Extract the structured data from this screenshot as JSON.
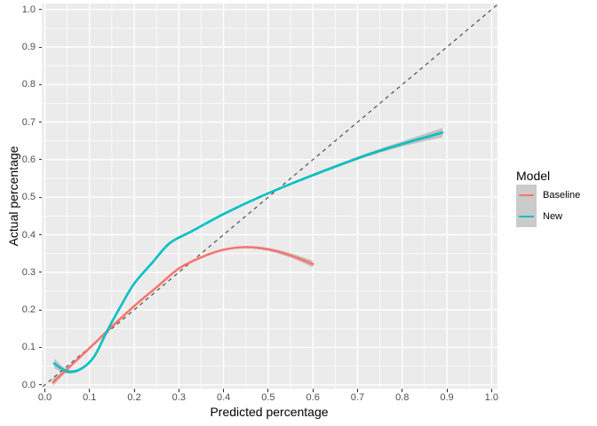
{
  "figure": {
    "bg": "#FFFFFF",
    "panel_bg": "#EBEBEB",
    "grid_color": "#FFFFFF",
    "tick_mark_color": "#333333",
    "tick_label_color": "#4D4D4D",
    "ribbon_color": "rgba(105,105,105,0.32)"
  },
  "axes": {
    "x": {
      "title": "Predicted percentage",
      "tick_labels": [
        "0.0",
        "0.1",
        "0.2",
        "0.3",
        "0.4",
        "0.5",
        "0.6",
        "0.7",
        "0.8",
        "0.9",
        "1.0"
      ],
      "tick_values": [
        0,
        0.1,
        0.2,
        0.3,
        0.4,
        0.5,
        0.6,
        0.7,
        0.8,
        0.9,
        1.0
      ],
      "minor_values": [
        0.05,
        0.15,
        0.25,
        0.35,
        0.45,
        0.55,
        0.65,
        0.75,
        0.85,
        0.95
      ]
    },
    "y": {
      "title": "Actual percentage",
      "tick_labels": [
        "0.0",
        "0.1",
        "0.2",
        "0.3",
        "0.4",
        "0.5",
        "0.6",
        "0.7",
        "0.8",
        "0.9",
        "1.0"
      ],
      "tick_values": [
        0,
        0.1,
        0.2,
        0.3,
        0.4,
        0.5,
        0.6,
        0.7,
        0.8,
        0.9,
        1.0
      ],
      "minor_values": [
        0.05,
        0.15,
        0.25,
        0.35,
        0.45,
        0.55,
        0.65,
        0.75,
        0.85,
        0.95
      ]
    }
  },
  "legend": {
    "title": "Model",
    "key_bg": "#CBCBCB",
    "items": [
      {
        "label": "Baseline",
        "color": "#F8766D"
      },
      {
        "label": "New",
        "color": "#00BFC4"
      }
    ]
  },
  "chart_data": {
    "type": "line",
    "title": "",
    "xlabel": "Predicted percentage",
    "ylabel": "Actual percentage",
    "xlim": [
      0,
      1
    ],
    "ylim": [
      0,
      1
    ],
    "grid": true,
    "legend_position": "right",
    "reference_line": {
      "slope": 1,
      "intercept": 0,
      "style": "dashed",
      "color": "#4D4D4D"
    },
    "series": [
      {
        "name": "Baseline",
        "color": "#F8766D",
        "x": [
          0.018,
          0.05,
          0.1,
          0.15,
          0.2,
          0.25,
          0.3,
          0.35,
          0.4,
          0.45,
          0.5,
          0.55,
          0.6
        ],
        "y": [
          0.007,
          0.042,
          0.098,
          0.155,
          0.21,
          0.26,
          0.31,
          0.34,
          0.36,
          0.367,
          0.361,
          0.345,
          0.322
        ],
        "band_halfwidth": [
          0.01,
          0.004,
          0.003,
          0.002,
          0.002,
          0.002,
          0.002,
          0.002,
          0.002,
          0.003,
          0.004,
          0.006,
          0.009
        ]
      },
      {
        "name": "New",
        "color": "#00BFC4",
        "x": [
          0.021,
          0.05,
          0.08,
          0.11,
          0.14,
          0.17,
          0.2,
          0.24,
          0.28,
          0.33,
          0.4,
          0.48,
          0.56,
          0.64,
          0.72,
          0.8,
          0.89
        ],
        "y": [
          0.057,
          0.036,
          0.042,
          0.075,
          0.145,
          0.21,
          0.27,
          0.325,
          0.378,
          0.41,
          0.455,
          0.5,
          0.54,
          0.577,
          0.612,
          0.642,
          0.672
        ],
        "band_halfwidth": [
          0.013,
          0.006,
          0.003,
          0.002,
          0.002,
          0.002,
          0.002,
          0.002,
          0.002,
          0.002,
          0.002,
          0.002,
          0.003,
          0.004,
          0.005,
          0.007,
          0.012
        ]
      }
    ]
  }
}
